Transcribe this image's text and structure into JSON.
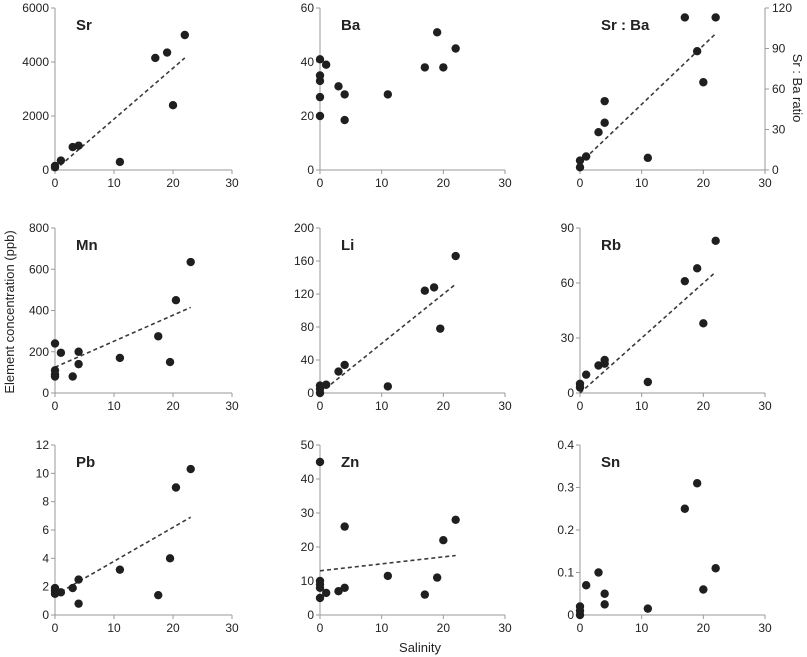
{
  "figure": {
    "ylabel": "Element concentration (ppb)",
    "xlabel": "Salinity",
    "right_ylabel": "Sr : Ba ratio"
  },
  "colors": {
    "point": "#1f1f1f",
    "trend": "#3a3a3a",
    "axis": "#9a9a9a"
  },
  "chart_data": [
    {
      "type": "scatter",
      "title": "Sr",
      "xlim": [
        0,
        30
      ],
      "ylim": [
        0,
        6000
      ],
      "xticks": [
        "0",
        "10",
        "20",
        "30"
      ],
      "yticks": [
        "0",
        "2000",
        "4000",
        "6000"
      ],
      "points": [
        [
          0,
          100
        ],
        [
          0,
          150
        ],
        [
          1,
          350
        ],
        [
          3,
          850
        ],
        [
          4,
          900
        ],
        [
          11,
          300
        ],
        [
          17,
          4150
        ],
        [
          19,
          4350
        ],
        [
          20,
          2400
        ],
        [
          22,
          5000
        ]
      ],
      "trend": [
        [
          0,
          0
        ],
        [
          22,
          4150
        ]
      ]
    },
    {
      "type": "scatter",
      "title": "Ba",
      "xlim": [
        0,
        30
      ],
      "ylim": [
        0,
        60
      ],
      "xticks": [
        "0",
        "10",
        "20",
        "30"
      ],
      "yticks": [
        "0",
        "20",
        "40",
        "60"
      ],
      "points": [
        [
          0,
          41
        ],
        [
          0,
          35
        ],
        [
          0,
          33
        ],
        [
          0,
          27
        ],
        [
          0,
          20
        ],
        [
          1,
          39
        ],
        [
          3,
          31
        ],
        [
          4,
          28
        ],
        [
          4,
          18.5
        ],
        [
          11,
          28
        ],
        [
          17,
          38
        ],
        [
          19,
          51
        ],
        [
          20,
          38
        ],
        [
          22,
          45
        ]
      ],
      "trend": null
    },
    {
      "type": "scatter",
      "title": "Sr : Ba",
      "xlim": [
        0,
        30
      ],
      "ylim": [
        0,
        120
      ],
      "xticks": [
        "0",
        "10",
        "20",
        "30"
      ],
      "yticks": [
        "0",
        "30",
        "60",
        "90",
        "120"
      ],
      "ylabel": "Sr : Ba ratio",
      "y_axis_side": "right",
      "points": [
        [
          0,
          2
        ],
        [
          0,
          7
        ],
        [
          1,
          10
        ],
        [
          3,
          28
        ],
        [
          4,
          35
        ],
        [
          4,
          51
        ],
        [
          11,
          9
        ],
        [
          17,
          113
        ],
        [
          19,
          88
        ],
        [
          20,
          65
        ],
        [
          22,
          113
        ]
      ],
      "trend": [
        [
          0,
          5
        ],
        [
          22,
          101
        ]
      ]
    },
    {
      "type": "scatter",
      "title": "Mn",
      "xlim": [
        0,
        30
      ],
      "ylim": [
        0,
        800
      ],
      "xticks": [
        "0",
        "10",
        "20",
        "30"
      ],
      "yticks": [
        "0",
        "200",
        "400",
        "600",
        "800"
      ],
      "points": [
        [
          0,
          240
        ],
        [
          0,
          110
        ],
        [
          0,
          90
        ],
        [
          0,
          80
        ],
        [
          1,
          195
        ],
        [
          3,
          80
        ],
        [
          4,
          200
        ],
        [
          4,
          140
        ],
        [
          11,
          170
        ],
        [
          17.5,
          275
        ],
        [
          19.5,
          150
        ],
        [
          20.5,
          450
        ],
        [
          23,
          635
        ]
      ],
      "trend": [
        [
          0,
          125
        ],
        [
          23,
          415
        ]
      ]
    },
    {
      "type": "scatter",
      "title": "Li",
      "xlim": [
        0,
        30
      ],
      "ylim": [
        0,
        200
      ],
      "xticks": [
        "0",
        "10",
        "20",
        "30"
      ],
      "yticks": [
        "0",
        "40",
        "80",
        "120",
        "160",
        "200"
      ],
      "points": [
        [
          0,
          0
        ],
        [
          0,
          5
        ],
        [
          0,
          9
        ],
        [
          1,
          10
        ],
        [
          3,
          26
        ],
        [
          4,
          34
        ],
        [
          11,
          8
        ],
        [
          17,
          124
        ],
        [
          18.5,
          128
        ],
        [
          19.5,
          78
        ],
        [
          22,
          166
        ]
      ],
      "trend": [
        [
          0,
          0
        ],
        [
          22,
          132
        ]
      ]
    },
    {
      "type": "scatter",
      "title": "Rb",
      "xlim": [
        0,
        30
      ],
      "ylim": [
        0,
        90
      ],
      "xticks": [
        "0",
        "10",
        "20",
        "30"
      ],
      "yticks": [
        "0",
        "30",
        "60",
        "90"
      ],
      "points": [
        [
          0,
          3
        ],
        [
          0,
          5
        ],
        [
          1,
          10
        ],
        [
          3,
          15
        ],
        [
          4,
          16
        ],
        [
          4,
          18
        ],
        [
          11,
          6
        ],
        [
          17,
          61
        ],
        [
          19,
          68
        ],
        [
          20,
          38
        ],
        [
          22,
          83
        ]
      ],
      "trend": [
        [
          0,
          0
        ],
        [
          22,
          66
        ]
      ]
    },
    {
      "type": "scatter",
      "title": "Pb",
      "xlim": [
        0,
        30
      ],
      "ylim": [
        0,
        12
      ],
      "xticks": [
        "0",
        "10",
        "20",
        "30"
      ],
      "yticks": [
        "0",
        "2",
        "4",
        "6",
        "8",
        "10",
        "12"
      ],
      "points": [
        [
          0,
          1.9
        ],
        [
          0,
          1.7
        ],
        [
          0,
          1.5
        ],
        [
          1,
          1.6
        ],
        [
          3,
          1.9
        ],
        [
          4,
          2.5
        ],
        [
          4,
          0.8
        ],
        [
          11,
          3.2
        ],
        [
          17.5,
          1.4
        ],
        [
          19.5,
          4
        ],
        [
          20.5,
          9
        ],
        [
          23,
          10.3
        ]
      ],
      "trend": [
        [
          0,
          1.4
        ],
        [
          23,
          6.9
        ]
      ]
    },
    {
      "type": "scatter",
      "title": "Zn",
      "xlim": [
        0,
        30
      ],
      "ylim": [
        0,
        50
      ],
      "xticks": [
        "0",
        "10",
        "20",
        "30"
      ],
      "yticks": [
        "0",
        "10",
        "20",
        "30",
        "40",
        "50"
      ],
      "points": [
        [
          0,
          45
        ],
        [
          0,
          10
        ],
        [
          0,
          9
        ],
        [
          0,
          8
        ],
        [
          0,
          5
        ],
        [
          1,
          6.5
        ],
        [
          3,
          7
        ],
        [
          4,
          26
        ],
        [
          4,
          8
        ],
        [
          11,
          11.5
        ],
        [
          17,
          6
        ],
        [
          19,
          11
        ],
        [
          20,
          22
        ],
        [
          22,
          28
        ]
      ],
      "trend": [
        [
          0,
          13
        ],
        [
          22,
          17.5
        ]
      ]
    },
    {
      "type": "scatter",
      "title": "Sn",
      "xlim": [
        0,
        30
      ],
      "ylim": [
        0,
        0.4
      ],
      "xticks": [
        "0",
        "10",
        "20",
        "30"
      ],
      "yticks": [
        "0",
        "0.1",
        "0.2",
        "0.3",
        "0.4"
      ],
      "points": [
        [
          0,
          0
        ],
        [
          0,
          0.01
        ],
        [
          0,
          0.02
        ],
        [
          1,
          0.07
        ],
        [
          3,
          0.1
        ],
        [
          4,
          0.05
        ],
        [
          4,
          0.025
        ],
        [
          11,
          0.015
        ],
        [
          17,
          0.25
        ],
        [
          19,
          0.31
        ],
        [
          20,
          0.06
        ],
        [
          22,
          0.11
        ]
      ],
      "trend": null
    }
  ]
}
